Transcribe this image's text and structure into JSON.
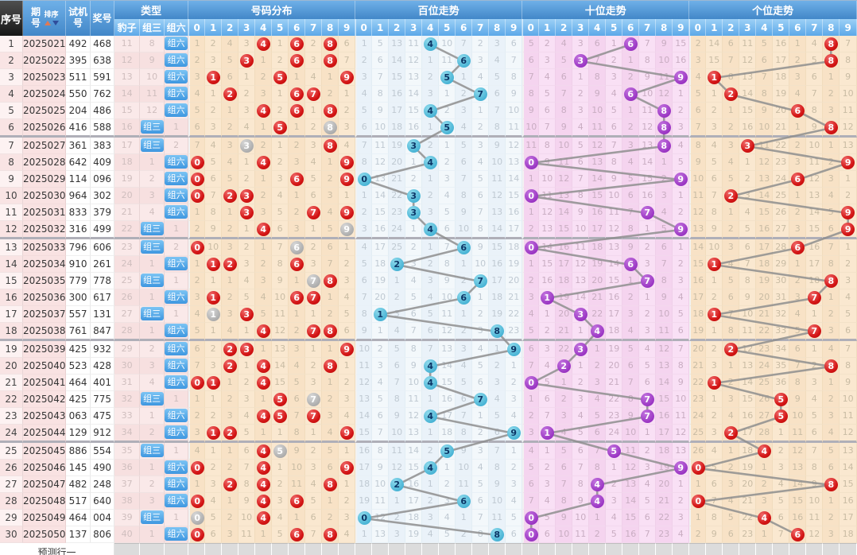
{
  "header": {
    "seq": "序号",
    "period": "期号",
    "sort": "排序",
    "test": "试机号",
    "prize": "奖号",
    "type": "类型",
    "leopard": "豹子",
    "group3": "组三",
    "group6": "组六",
    "sections": [
      {
        "key": "dist",
        "title": "号码分布"
      },
      {
        "key": "hundreds",
        "title": "百位走势"
      },
      {
        "key": "tens",
        "title": "十位走势"
      },
      {
        "key": "units",
        "title": "个位走势"
      }
    ],
    "digits": [
      "0",
      "1",
      "2",
      "3",
      "4",
      "5",
      "6",
      "7",
      "8",
      "9"
    ]
  },
  "footer": {
    "label": "预测行一"
  },
  "rows": [
    {
      "seq": "1",
      "period": "2025021",
      "test": "492",
      "prize": "468",
      "leopard": "11",
      "group3": "8",
      "group6": "组六"
    },
    {
      "seq": "2",
      "period": "2025022",
      "test": "395",
      "prize": "638",
      "leopard": "12",
      "group3": "9",
      "group6": "组六"
    },
    {
      "seq": "3",
      "period": "2025023",
      "test": "511",
      "prize": "591",
      "leopard": "13",
      "group3": "10",
      "group6": "组六"
    },
    {
      "seq": "4",
      "period": "2025024",
      "test": "550",
      "prize": "762",
      "leopard": "14",
      "group3": "11",
      "group6": "组六"
    },
    {
      "seq": "5",
      "period": "2025025",
      "test": "204",
      "prize": "486",
      "leopard": "15",
      "group3": "12",
      "group6": "组六"
    },
    {
      "seq": "6",
      "period": "2025026",
      "test": "416",
      "prize": "588",
      "leopard": "16",
      "group3": "组三",
      "group6": "1"
    },
    {
      "seq": "7",
      "period": "2025027",
      "test": "361",
      "prize": "383",
      "leopard": "17",
      "group3": "组三",
      "group6": "2"
    },
    {
      "seq": "8",
      "period": "2025028",
      "test": "642",
      "prize": "409",
      "leopard": "18",
      "group3": "1",
      "group6": "组六"
    },
    {
      "seq": "9",
      "period": "2025029",
      "test": "114",
      "prize": "096",
      "leopard": "19",
      "group3": "2",
      "group6": "组六"
    },
    {
      "seq": "10",
      "period": "2025030",
      "test": "964",
      "prize": "302",
      "leopard": "20",
      "group3": "3",
      "group6": "组六"
    },
    {
      "seq": "11",
      "period": "2025031",
      "test": "833",
      "prize": "379",
      "leopard": "21",
      "group3": "4",
      "group6": "组六"
    },
    {
      "seq": "12",
      "period": "2025032",
      "test": "316",
      "prize": "499",
      "leopard": "22",
      "group3": "组三",
      "group6": "1"
    },
    {
      "seq": "13",
      "period": "2025033",
      "test": "796",
      "prize": "606",
      "leopard": "23",
      "group3": "组三",
      "group6": "2"
    },
    {
      "seq": "14",
      "period": "2025034",
      "test": "910",
      "prize": "261",
      "leopard": "24",
      "group3": "1",
      "group6": "组六"
    },
    {
      "seq": "15",
      "period": "2025035",
      "test": "779",
      "prize": "778",
      "leopard": "25",
      "group3": "组三",
      "group6": "1"
    },
    {
      "seq": "16",
      "period": "2025036",
      "test": "300",
      "prize": "617",
      "leopard": "26",
      "group3": "1",
      "group6": "组六"
    },
    {
      "seq": "17",
      "period": "2025037",
      "test": "557",
      "prize": "131",
      "leopard": "27",
      "group3": "组三",
      "group6": "1"
    },
    {
      "seq": "18",
      "period": "2025038",
      "test": "761",
      "prize": "847",
      "leopard": "28",
      "group3": "1",
      "group6": "组六"
    },
    {
      "seq": "19",
      "period": "2025039",
      "test": "425",
      "prize": "932",
      "leopard": "29",
      "group3": "2",
      "group6": "组六"
    },
    {
      "seq": "20",
      "period": "2025040",
      "test": "523",
      "prize": "428",
      "leopard": "30",
      "group3": "3",
      "group6": "组六"
    },
    {
      "seq": "21",
      "period": "2025041",
      "test": "464",
      "prize": "401",
      "leopard": "31",
      "group3": "4",
      "group6": "组六"
    },
    {
      "seq": "22",
      "period": "2025042",
      "test": "425",
      "prize": "775",
      "leopard": "32",
      "group3": "组三",
      "group6": "1"
    },
    {
      "seq": "23",
      "period": "2025043",
      "test": "063",
      "prize": "475",
      "leopard": "33",
      "group3": "1",
      "group6": "组六"
    },
    {
      "seq": "24",
      "period": "2025044",
      "test": "129",
      "prize": "912",
      "leopard": "34",
      "group3": "2",
      "group6": "组六"
    },
    {
      "seq": "25",
      "period": "2025045",
      "test": "886",
      "prize": "554",
      "leopard": "35",
      "group3": "组三",
      "group6": "1"
    },
    {
      "seq": "26",
      "period": "2025046",
      "test": "145",
      "prize": "490",
      "leopard": "36",
      "group3": "1",
      "group6": "组六"
    },
    {
      "seq": "27",
      "period": "2025047",
      "test": "482",
      "prize": "248",
      "leopard": "37",
      "group3": "2",
      "group6": "组六"
    },
    {
      "seq": "28",
      "period": "2025048",
      "test": "517",
      "prize": "640",
      "leopard": "38",
      "group3": "3",
      "group6": "组六"
    },
    {
      "seq": "29",
      "period": "2025049",
      "test": "464",
      "prize": "004",
      "leopard": "39",
      "group3": "组三",
      "group6": "1"
    },
    {
      "seq": "30",
      "period": "2025050",
      "test": "137",
      "prize": "806",
      "leopard": "40",
      "group3": "1",
      "group6": "组六"
    }
  ],
  "chart_data": {
    "type": "table",
    "sections": [
      "号码分布",
      "百位走势",
      "十位走势",
      "个位走势"
    ],
    "digit_axis": [
      0,
      1,
      2,
      3,
      4,
      5,
      6,
      7,
      8,
      9
    ],
    "periods": [
      "2025021",
      "2025022",
      "2025023",
      "2025024",
      "2025025",
      "2025026",
      "2025027",
      "2025028",
      "2025029",
      "2025030",
      "2025031",
      "2025032",
      "2025033",
      "2025034",
      "2025035",
      "2025036",
      "2025037",
      "2025038",
      "2025039",
      "2025040",
      "2025041",
      "2025042",
      "2025043",
      "2025044",
      "2025045",
      "2025046",
      "2025047",
      "2025048",
      "2025049",
      "2025050"
    ],
    "test_numbers": [
      "492",
      "395",
      "511",
      "550",
      "204",
      "416",
      "361",
      "642",
      "114",
      "964",
      "833",
      "316",
      "796",
      "910",
      "779",
      "300",
      "557",
      "761",
      "425",
      "523",
      "464",
      "425",
      "063",
      "129",
      "886",
      "145",
      "482",
      "517",
      "464",
      "137"
    ],
    "prize_numbers": [
      "468",
      "638",
      "591",
      "762",
      "486",
      "588",
      "383",
      "409",
      "096",
      "302",
      "379",
      "499",
      "606",
      "261",
      "778",
      "617",
      "131",
      "847",
      "932",
      "428",
      "401",
      "775",
      "475",
      "912",
      "554",
      "490",
      "248",
      "640",
      "004",
      "806"
    ],
    "hundreds_digits": [
      4,
      6,
      5,
      7,
      4,
      5,
      3,
      4,
      0,
      3,
      3,
      4,
      6,
      2,
      7,
      6,
      1,
      8,
      9,
      4,
      4,
      7,
      4,
      9,
      5,
      4,
      2,
      6,
      0,
      8
    ],
    "tens_digits": [
      6,
      3,
      9,
      6,
      8,
      8,
      8,
      0,
      9,
      0,
      7,
      9,
      0,
      6,
      7,
      1,
      3,
      4,
      3,
      2,
      0,
      7,
      7,
      1,
      5,
      9,
      4,
      4,
      0,
      0
    ],
    "units_digits": [
      8,
      8,
      1,
      2,
      6,
      8,
      3,
      9,
      6,
      2,
      9,
      9,
      6,
      1,
      8,
      7,
      1,
      7,
      2,
      8,
      1,
      5,
      5,
      2,
      4,
      0,
      8,
      0,
      4,
      6
    ],
    "row1_miss_seeds": {
      "dist": [
        1,
        2,
        4,
        3,
        null,
        1,
        null,
        2,
        null,
        6
      ],
      "hundreds": [
        1,
        5,
        13,
        11,
        null,
        10,
        7,
        2,
        3,
        6
      ],
      "tens": [
        5,
        2,
        4,
        3,
        6,
        1,
        null,
        7,
        9,
        15
      ],
      "units": [
        2,
        14,
        6,
        11,
        5,
        16,
        1,
        4,
        null,
        7
      ]
    },
    "miss_rule": "each cell shows periods since that digit last appeared; resets to 1 the period after an appearance; circled cell = digit appeared (gray circle = digit repeated within prize number); band separator every 6 rows",
    "legend_colors": {
      "distribution_hit": "#D31414",
      "repeated_hit": "#A8A8A8",
      "hundreds_hit": "#2EA5CC",
      "tens_hit": "#8A1CB8",
      "units_hit": "#D31414",
      "trend_line": "#8F8F8F",
      "header_blue": "#4287C8",
      "subheader_blue": "#5CA8E8",
      "type_tag_blue": "#3E97E0",
      "dist_bg": "#FAE8D0",
      "hundreds_bg": "#F3F8FB",
      "tens_bg": "#F9E0F5",
      "footer_gray": "#DCDCDC"
    }
  }
}
